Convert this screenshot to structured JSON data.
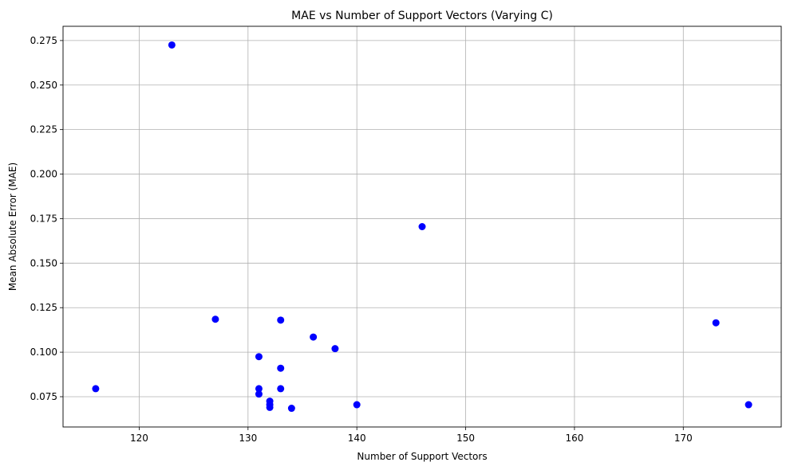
{
  "chart_data": {
    "type": "scatter",
    "title": "MAE vs Number of Support Vectors (Varying C)",
    "xlabel": "Number of Support Vectors",
    "ylabel": "Mean Absolute Error (MAE)",
    "xlim": [
      113,
      179
    ],
    "ylim": [
      0.058,
      0.283
    ],
    "xticks": [
      120,
      130,
      140,
      150,
      160,
      170
    ],
    "xtick_labels": [
      "120",
      "130",
      "140",
      "150",
      "160",
      "170"
    ],
    "yticks": [
      0.075,
      0.1,
      0.125,
      0.15,
      0.175,
      0.2,
      0.225,
      0.25,
      0.275
    ],
    "ytick_labels": [
      "0.075",
      "0.100",
      "0.125",
      "0.150",
      "0.175",
      "0.200",
      "0.225",
      "0.250",
      "0.275"
    ],
    "grid": true,
    "point_color": "#0000ff",
    "points": [
      {
        "x": 116,
        "y": 0.0795
      },
      {
        "x": 123,
        "y": 0.2725
      },
      {
        "x": 127,
        "y": 0.1185
      },
      {
        "x": 131,
        "y": 0.0975
      },
      {
        "x": 131,
        "y": 0.0795
      },
      {
        "x": 131,
        "y": 0.0765
      },
      {
        "x": 132,
        "y": 0.0725
      },
      {
        "x": 132,
        "y": 0.0705
      },
      {
        "x": 132,
        "y": 0.069
      },
      {
        "x": 133,
        "y": 0.118
      },
      {
        "x": 133,
        "y": 0.091
      },
      {
        "x": 133,
        "y": 0.0795
      },
      {
        "x": 134,
        "y": 0.0685
      },
      {
        "x": 136,
        "y": 0.1085
      },
      {
        "x": 138,
        "y": 0.102
      },
      {
        "x": 140,
        "y": 0.0705
      },
      {
        "x": 146,
        "y": 0.1705
      },
      {
        "x": 173,
        "y": 0.1165
      },
      {
        "x": 176,
        "y": 0.0705
      }
    ]
  }
}
